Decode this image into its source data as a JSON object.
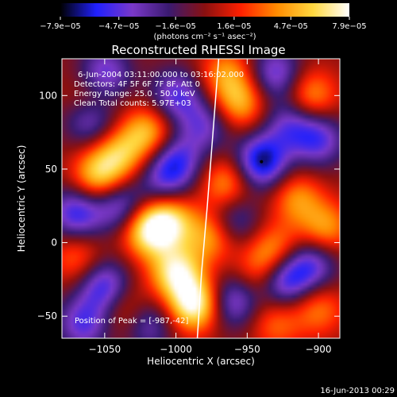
{
  "chart_data": {
    "type": "heatmap",
    "title": "Reconstructed RHESSI Image",
    "xlabel": "Heliocentric X (arcsec)",
    "ylabel": "Heliocentric Y (arcsec)",
    "xlim": [
      -1080,
      -885
    ],
    "ylim": [
      -65,
      125
    ],
    "x_ticks": [
      -1050,
      -1000,
      -950,
      -900
    ],
    "x_tick_labels": [
      "−1050",
      "−1000",
      "−950",
      "−900"
    ],
    "y_ticks": [
      -50,
      0,
      50,
      100
    ],
    "y_tick_labels": [
      "−50",
      "0",
      "50",
      "100"
    ],
    "colorbar": {
      "range": [
        -7.9e-05,
        7.9e-05
      ],
      "tick_values": [
        -7.9e-05,
        -4.7e-05,
        -1.6e-05,
        1.6e-05,
        4.7e-05,
        7.9e-05
      ],
      "tick_labels": [
        "−7.9e−05",
        "−4.7e−05",
        "−1.6e−05",
        "1.6e−05",
        "4.7e−05",
        "7.9e−05"
      ],
      "unit_label": "(photons cm⁻² s⁻¹ asec⁻²)",
      "colors": [
        "#000000",
        "#2020ff",
        "#7a38c8",
        "#3a1a70",
        "#8a1010",
        "#ff2000",
        "#ff8c00",
        "#ffd840",
        "#ffffff"
      ]
    },
    "info_lines": [
      "6-Jun-2004 03:11:00.000 to 03:16:02.000",
      "Detectors: 4F 5F 6F 7F 8F, Att 0",
      "Energy Range: 25.0 - 50.0 keV",
      "Clean     Total counts: 5.97E+03"
    ],
    "peak_label": "Position of Peak = [-987,-42]",
    "peak_position": [
      -987,
      -42
    ],
    "blobs": [
      {
        "x": -987,
        "y": -42,
        "v": 1.0
      },
      {
        "x": -1000,
        "y": -20,
        "v": 0.85
      },
      {
        "x": -1020,
        "y": 8,
        "v": 0.8
      },
      {
        "x": -1005,
        "y": 15,
        "v": 0.75
      },
      {
        "x": -1055,
        "y": 45,
        "v": 0.7
      },
      {
        "x": -1040,
        "y": 60,
        "v": 0.6
      },
      {
        "x": -1020,
        "y": 75,
        "v": 0.65
      },
      {
        "x": -975,
        "y": 5,
        "v": 0.6
      },
      {
        "x": -965,
        "y": 40,
        "v": 0.55
      },
      {
        "x": -955,
        "y": 95,
        "v": 0.6
      },
      {
        "x": -965,
        "y": 115,
        "v": 0.5
      },
      {
        "x": -905,
        "y": 100,
        "v": 0.55
      },
      {
        "x": -915,
        "y": 30,
        "v": 0.5
      },
      {
        "x": -895,
        "y": 10,
        "v": 0.55
      },
      {
        "x": -940,
        "y": -20,
        "v": 0.45
      },
      {
        "x": -930,
        "y": -5,
        "v": 0.5
      },
      {
        "x": -900,
        "y": -45,
        "v": 0.45
      },
      {
        "x": -930,
        "y": -55,
        "v": 0.4
      },
      {
        "x": -1070,
        "y": -10,
        "v": 0.4
      },
      {
        "x": -1060,
        "y": 95,
        "v": 0.45
      },
      {
        "x": -1035,
        "y": -45,
        "v": 0.4
      },
      {
        "x": -940,
        "y": 55,
        "v": -0.9
      },
      {
        "x": -1060,
        "y": 85,
        "v": -0.7
      },
      {
        "x": -1050,
        "y": 115,
        "v": -0.6
      },
      {
        "x": -1070,
        "y": 20,
        "v": -0.7
      },
      {
        "x": -1040,
        "y": 25,
        "v": -0.6
      },
      {
        "x": -1050,
        "y": -30,
        "v": -0.7
      },
      {
        "x": -1065,
        "y": -55,
        "v": -0.6
      },
      {
        "x": -1000,
        "y": 55,
        "v": -0.65
      },
      {
        "x": -1000,
        "y": 100,
        "v": -0.6
      },
      {
        "x": -980,
        "y": 80,
        "v": -0.5
      },
      {
        "x": -960,
        "y": -40,
        "v": -0.6
      },
      {
        "x": -925,
        "y": -25,
        "v": -0.8
      },
      {
        "x": -900,
        "y": 70,
        "v": -0.6
      },
      {
        "x": -905,
        "y": -15,
        "v": -0.6
      },
      {
        "x": -930,
        "y": 115,
        "v": -0.6
      },
      {
        "x": -960,
        "y": 15,
        "v": -0.5
      },
      {
        "x": -920,
        "y": 80,
        "v": -0.5
      },
      {
        "x": -1020,
        "y": -55,
        "v": -0.5
      },
      {
        "x": -1010,
        "y": 40,
        "v": -0.4
      }
    ],
    "limb_curve": [
      [
        -985,
        -65
      ],
      [
        -982,
        -20
      ],
      [
        -978,
        25
      ],
      [
        -974,
        75
      ],
      [
        -970,
        125
      ]
    ],
    "grid": false,
    "legend": "none"
  },
  "footer": {
    "timestamp": "16-Jun-2013 00:29"
  }
}
